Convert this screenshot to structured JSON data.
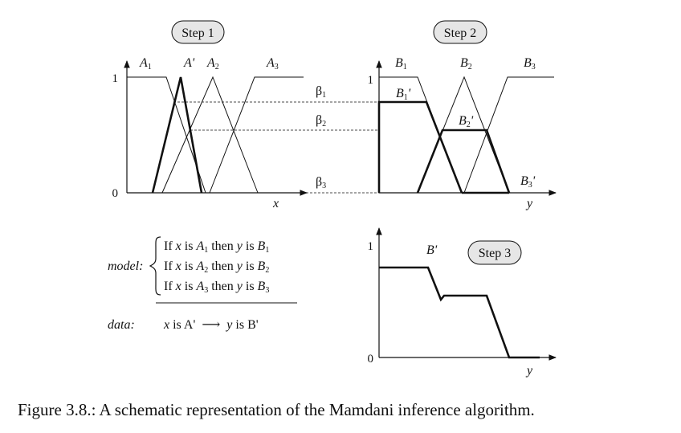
{
  "figure": {
    "caption": "Figure 3.8.: A schematic representation of the Mamdani inference algorithm.",
    "steps": {
      "step1": "Step 1",
      "step2": "Step 2",
      "step3": "Step 3"
    }
  },
  "step1_panel": {
    "y_tick_top": "1",
    "y_tick_bottom": "0",
    "x_axis_label": "x",
    "sets": [
      {
        "name": "A",
        "sub": "1"
      },
      {
        "name": "A'",
        "sub": ""
      },
      {
        "name": "A",
        "sub": "2"
      },
      {
        "name": "A",
        "sub": "3"
      }
    ]
  },
  "betas": [
    {
      "name": "β",
      "sub": "1"
    },
    {
      "name": "β",
      "sub": "2"
    },
    {
      "name": "β",
      "sub": "3"
    }
  ],
  "step2_panel": {
    "y_tick_top": "1",
    "y_axis_label": "y",
    "sets": [
      {
        "name": "B",
        "sub": "1"
      },
      {
        "name": "B",
        "sub": "2"
      },
      {
        "name": "B",
        "sub": "3"
      }
    ],
    "clipped_sets": [
      {
        "name": "B",
        "sub": "1",
        "prime": "'"
      },
      {
        "name": "B",
        "sub": "2",
        "prime": "'"
      },
      {
        "name": "B",
        "sub": "3",
        "prime": "'"
      }
    ]
  },
  "step3_panel": {
    "y_tick_top": "1",
    "y_tick_bottom": "0",
    "y_axis_label": "y",
    "result_label": "B'"
  },
  "model_block": {
    "model_label": "model:",
    "rules": [
      {
        "if": "If",
        "var_x": "x",
        "is1": "is",
        "set_a": "A",
        "set_a_sub": "1",
        "then": "then",
        "var_y": "y",
        "is2": "is",
        "set_b": "B",
        "set_b_sub": "1"
      },
      {
        "if": "If",
        "var_x": "x",
        "is1": "is",
        "set_a": "A",
        "set_a_sub": "2",
        "then": "then",
        "var_y": "y",
        "is2": "is",
        "set_b": "B",
        "set_b_sub": "2"
      },
      {
        "if": "If",
        "var_x": "x",
        "is1": "is",
        "set_a": "A",
        "set_a_sub": "3",
        "then": "then",
        "var_y": "y",
        "is2": "is",
        "set_b": "B",
        "set_b_sub": "3"
      }
    ],
    "data_label": "data:",
    "data_lhs_var": "x",
    "data_lhs_rest": "is A'",
    "data_arrow": "⟶",
    "data_rhs_var": "y",
    "data_rhs_rest": "is B'"
  },
  "colors": {
    "ink": "#111111",
    "pill_fill": "#e6e6e6",
    "background": "#ffffff"
  }
}
